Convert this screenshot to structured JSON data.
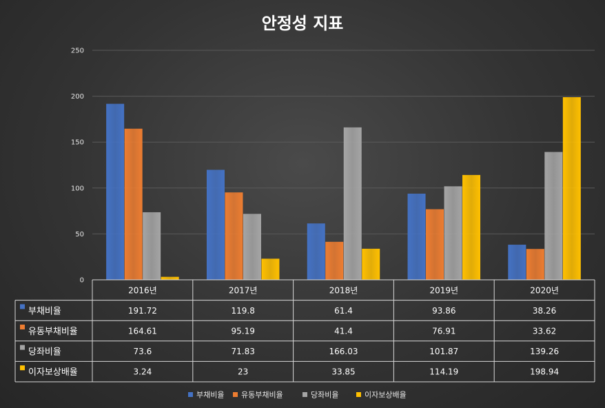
{
  "chart_data": {
    "type": "bar",
    "title": "안정성 지표",
    "categories": [
      "2016년",
      "2017년",
      "2018년",
      "2019년",
      "2020년"
    ],
    "series": [
      {
        "name": "부채비율",
        "values": [
          191.72,
          119.8,
          61.4,
          93.86,
          38.26
        ],
        "color": "#4472C4",
        "value_labels": [
          "191.72",
          "119.8",
          "61.4",
          "93.86",
          "38.26"
        ]
      },
      {
        "name": "유동부채비율",
        "values": [
          164.61,
          95.19,
          41.4,
          76.91,
          33.62
        ],
        "color": "#ED7D31",
        "value_labels": [
          "164.61",
          "95.19",
          "41.4",
          "76.91",
          "33.62"
        ]
      },
      {
        "name": "당좌비율",
        "values": [
          73.6,
          71.83,
          166.03,
          101.87,
          139.26
        ],
        "color": "#A5A5A5",
        "value_labels": [
          "73.6",
          "71.83",
          "166.03",
          "101.87",
          "139.26"
        ]
      },
      {
        "name": "이자보상배율",
        "values": [
          3.24,
          23,
          33.85,
          114.19,
          198.94
        ],
        "color": "#FFC000",
        "value_labels": [
          "3.24",
          "23",
          "33.85",
          "114.19",
          "198.94"
        ]
      }
    ],
    "y_ticks": [
      "0",
      "50",
      "100",
      "150",
      "200",
      "250"
    ],
    "ylim": [
      0,
      250
    ],
    "grid": true,
    "legend_position": "bottom",
    "has_data_table": true
  }
}
